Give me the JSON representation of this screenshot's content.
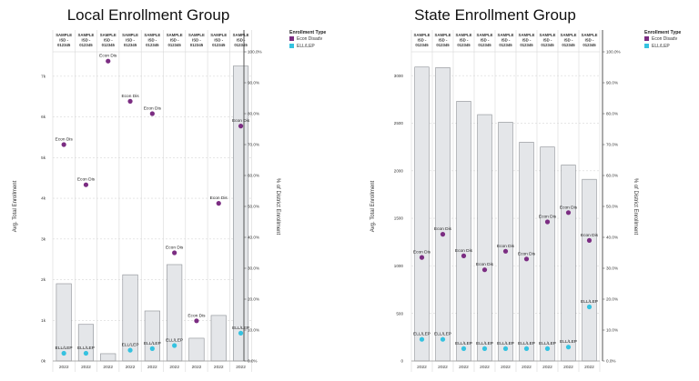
{
  "chart_data": [
    {
      "type": "bar",
      "title": "Local Enrollment Group",
      "categories": [
        "SAMPLE ISD - 012345",
        "SAMPLE ISD - 012345",
        "SAMPLE ISD - 012345",
        "SAMPLE ISD - 012345",
        "SAMPLE ISD - 012345",
        "SAMPLE ISD - 012345",
        "SAMPLE ISD - 012345",
        "SAMPLE ISD - 012345",
        "SAMPLE ISD - 012345"
      ],
      "category_lines": [
        "SAMPLE",
        "ISD -",
        "012345"
      ],
      "year_labels": [
        "2022",
        "2022",
        "2022",
        "2022",
        "2022",
        "2022",
        "2022",
        "2022",
        "2022"
      ],
      "ylabel": "Avg. Total Enrollment",
      "y2label": "% of District Enrollment",
      "ylim": [
        0,
        7.6
      ],
      "y_ticks": [
        0,
        1,
        2,
        3,
        4,
        5,
        6,
        7
      ],
      "y_tick_labels": [
        "0k",
        "1k",
        "2k",
        "3k",
        "4k",
        "5k",
        "6k",
        "7k"
      ],
      "values": [
        1.9,
        0.9,
        0.18,
        2.12,
        1.23,
        2.37,
        0.56,
        1.12,
        7.25
      ],
      "y2lim": [
        0,
        1.0
      ],
      "y2_ticks": [
        0,
        0.1,
        0.2,
        0.3,
        0.4,
        0.5,
        0.6,
        0.7,
        0.8,
        0.9,
        1.0
      ],
      "y2_tick_labels": [
        "0.0%",
        "10.0%",
        "20.0%",
        "30.0%",
        "40.0%",
        "50.0%",
        "60.0%",
        "70.0%",
        "80.0%",
        "90.0%",
        "100.0%"
      ],
      "series": [
        {
          "name": "Econ Disadv",
          "point_label": "Econ Dis",
          "color": "#7b2d82",
          "values": [
            0.7,
            0.57,
            0.97,
            0.84,
            0.8,
            0.35,
            0.13,
            0.51,
            0.76
          ]
        },
        {
          "name": "ELL/LEP",
          "point_label": "ELL/LEP",
          "color": "#35c2e0",
          "values": [
            0.025,
            0.025,
            null,
            0.035,
            0.04,
            0.05,
            null,
            null,
            0.09
          ]
        }
      ]
    },
    {
      "type": "bar",
      "title": "State Enrollment Group",
      "categories": [
        "SAMPLE ISD - 012345",
        "SAMPLE ISD - 012345",
        "SAMPLE ISD - 012345",
        "SAMPLE ISD - 012345",
        "SAMPLE ISD - 012345",
        "SAMPLE ISD - 012345",
        "SAMPLE ISD - 012345",
        "SAMPLE ISD - 012345",
        "SAMPLE ISD - 012345"
      ],
      "category_lines": [
        "SAMPLE",
        "ISD -",
        "012345"
      ],
      "year_labels": [
        "2022",
        "2022",
        "2022",
        "2022",
        "2022",
        "2022",
        "2022",
        "2022",
        "2022"
      ],
      "ylabel": "Avg. Total Enrollment",
      "y2label": "% of District Enrollment",
      "ylim": [
        0,
        3250
      ],
      "y_ticks": [
        0,
        500,
        1000,
        1500,
        2000,
        2500,
        3000
      ],
      "y_tick_labels": [
        "0",
        "500",
        "1000",
        "1500",
        "2000",
        "2500",
        "3000"
      ],
      "values": [
        3090,
        3085,
        2730,
        2590,
        2510,
        2300,
        2250,
        2060,
        1910
      ],
      "y2lim": [
        0,
        1.0
      ],
      "y2_ticks": [
        0,
        0.1,
        0.2,
        0.3,
        0.4,
        0.5,
        0.6,
        0.7,
        0.8,
        0.9,
        1.0
      ],
      "y2_tick_labels": [
        "0.0%",
        "10.0%",
        "20.0%",
        "30.0%",
        "40.0%",
        "50.0%",
        "60.0%",
        "70.0%",
        "80.0%",
        "90.0%",
        "100.0%"
      ],
      "series": [
        {
          "name": "Econ Disadv",
          "point_label": "Econ Dis",
          "color": "#7b2d82",
          "values": [
            0.335,
            0.41,
            0.34,
            0.295,
            0.355,
            0.33,
            0.45,
            0.48,
            0.39
          ]
        },
        {
          "name": "ELL/LEP",
          "point_label": "ELL/LEP",
          "color": "#35c2e0",
          "values": [
            0.07,
            0.07,
            0.04,
            0.04,
            0.04,
            0.04,
            0.04,
            0.045,
            0.175
          ]
        }
      ]
    }
  ],
  "legend": {
    "title": "Enrollment Type",
    "items": [
      {
        "label": "Econ Disadv",
        "color": "#7b2d82"
      },
      {
        "label": "ELL/LEP",
        "color": "#35c2e0"
      }
    ]
  }
}
